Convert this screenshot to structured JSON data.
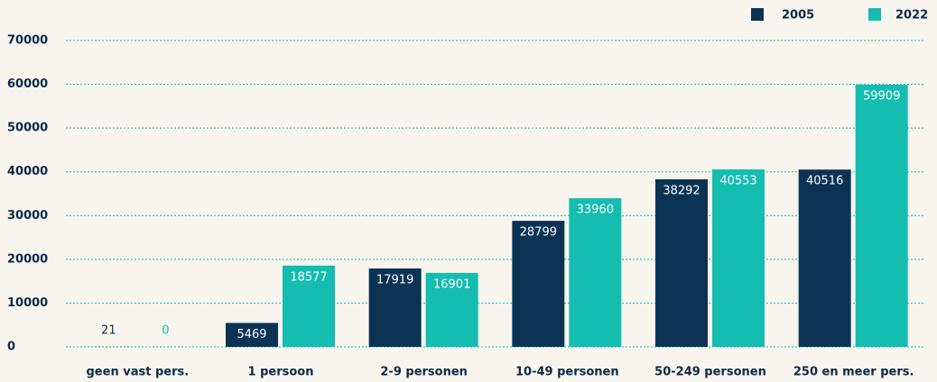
{
  "chart_data": {
    "type": "bar",
    "categories": [
      "geen vast pers.",
      "1 persoon",
      "2-9 personen",
      "10-49 personen",
      "50-249 personen",
      "250 en meer pers."
    ],
    "series": [
      {
        "name": "2005",
        "color": "#0b3354",
        "values": [
          21,
          5469,
          17919,
          28799,
          38292,
          40516
        ]
      },
      {
        "name": "2022",
        "color": "#14bdb0",
        "values": [
          0,
          18577,
          16901,
          33960,
          40553,
          59909
        ]
      }
    ],
    "ylim": [
      0,
      70000
    ],
    "yticks": [
      0,
      10000,
      20000,
      30000,
      40000,
      50000,
      60000,
      70000
    ],
    "grid": true
  }
}
